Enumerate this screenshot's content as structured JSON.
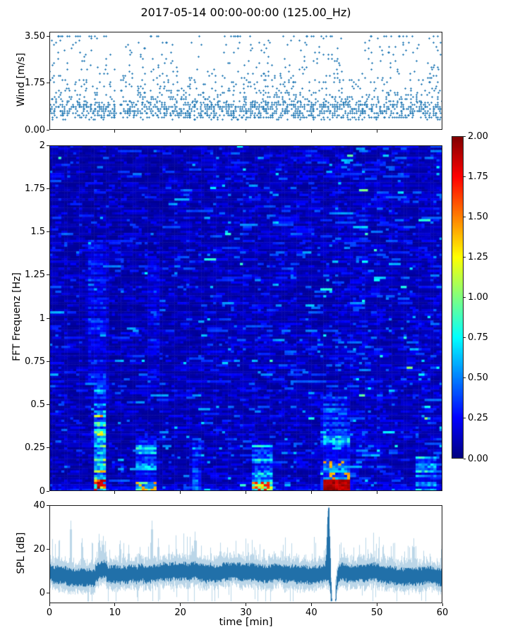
{
  "figure": {
    "title": "2017-05-14 00:00-00:00 (125.00_Hz)",
    "background": "#ffffff",
    "accent_color": "#1f77b4"
  },
  "chart_data": [
    {
      "type": "scatter",
      "name": "wind-speed",
      "ylabel": "Wind [m/s]",
      "yticks": [
        0,
        1.75,
        3.5
      ],
      "ytick_labels": [
        "0.00",
        "1.75",
        "3.50"
      ],
      "ylim": [
        0,
        3.66
      ],
      "xlim": [
        0,
        60
      ],
      "xticks_minor": [
        10,
        20,
        30,
        40,
        50
      ],
      "marker": "+",
      "color": "#1f77b4",
      "n_points": 1900,
      "y_min": 0.4,
      "y_max": 3.5,
      "quantize_y": 0.078,
      "quantize_x": 0.16,
      "gaps": [
        [
          10.05,
          10.7
        ]
      ],
      "calm_intervals": [
        [
          9.5,
          11.3
        ],
        [
          19.8,
          21.6
        ],
        [
          23.6,
          25.4
        ],
        [
          34.4,
          35.6
        ],
        [
          44.9,
          47.9
        ],
        [
          56.4,
          57.6
        ]
      ],
      "active_intervals": [
        [
          1.2,
          9.0
        ],
        [
          26.0,
          34.0
        ],
        [
          39.0,
          44.0
        ],
        [
          48.2,
          56.0
        ],
        [
          57.8,
          60.0
        ]
      ]
    },
    {
      "type": "heatmap",
      "name": "fft-spectrogram",
      "ylabel": "FFT Frequenz [Hz]",
      "yticks": [
        2,
        1.75,
        1.5,
        1.25,
        1,
        0.75,
        0.5,
        0.25,
        0
      ],
      "ytick_labels": [
        "2",
        "1.75",
        "1.5",
        "1.25",
        "1",
        "0.75",
        "0.5",
        "0.25",
        "0"
      ],
      "ylim": [
        0,
        2
      ],
      "xlim": [
        0,
        60
      ],
      "xticks_minor": [
        10,
        20,
        30,
        40,
        50
      ],
      "colormap": "jet",
      "clim": [
        0,
        2
      ],
      "background_level": 0.14,
      "colorbar": {
        "ticks": [
          2.0,
          1.75,
          1.5,
          1.25,
          1.0,
          0.75,
          0.5,
          0.25,
          0.0
        ],
        "tick_labels": [
          "2.00",
          "1.75",
          "1.50",
          "1.25",
          "1.00",
          "0.75",
          "0.50",
          "0.25",
          "0.00"
        ]
      },
      "features": [
        {
          "t": [
            6.6,
            8.9
          ],
          "f": [
            0.0,
            0.07
          ],
          "v": 2.0,
          "solid": 0.6
        },
        {
          "t": [
            6.6,
            8.9
          ],
          "f": [
            0.07,
            0.46
          ],
          "v": 1.55,
          "solid": 0
        },
        {
          "t": [
            6.6,
            8.9
          ],
          "f": [
            0.46,
            0.62
          ],
          "v": 0.95,
          "solid": 0
        },
        {
          "t": [
            5.4,
            9.2
          ],
          "f": [
            0.62,
            1.45
          ],
          "v": 0.5,
          "solid": 0
        },
        {
          "t": [
            12.9,
            16.7
          ],
          "f": [
            0.0,
            0.06
          ],
          "v": 1.5,
          "solid": 0.25
        },
        {
          "t": [
            12.9,
            16.7
          ],
          "f": [
            0.06,
            0.32
          ],
          "v": 1.1,
          "solid": 0
        },
        {
          "t": [
            14.8,
            17.2
          ],
          "f": [
            0.6,
            1.35
          ],
          "v": 0.45,
          "solid": 0
        },
        {
          "t": [
            21.4,
            23.3
          ],
          "f": [
            0.0,
            0.3
          ],
          "v": 0.75,
          "solid": 0
        },
        {
          "t": [
            30.7,
            34.4
          ],
          "f": [
            0.0,
            0.05
          ],
          "v": 1.8,
          "solid": 0.3
        },
        {
          "t": [
            30.7,
            34.4
          ],
          "f": [
            0.05,
            0.28
          ],
          "v": 1.0,
          "solid": 0
        },
        {
          "t": [
            41.5,
            46.2
          ],
          "f": [
            0.0,
            0.065
          ],
          "v": 2.0,
          "solid": 1
        },
        {
          "t": [
            41.3,
            46.2
          ],
          "f": [
            0.065,
            0.17
          ],
          "v": 1.5,
          "solid": 0.2
        },
        {
          "t": [
            41.3,
            46.2
          ],
          "f": [
            0.17,
            0.32
          ],
          "v": 1.0,
          "solid": 0
        },
        {
          "t": [
            41.3,
            46.0
          ],
          "f": [
            0.32,
            0.55
          ],
          "v": 0.65,
          "solid": 0
        },
        {
          "t": [
            55.6,
            59.6
          ],
          "f": [
            0.0,
            0.2
          ],
          "v": 1.0,
          "solid": 0
        },
        {
          "t": [
            0.0,
            60.0
          ],
          "f": [
            0.0,
            0.028
          ],
          "v": 0.55,
          "solid": 0
        }
      ]
    },
    {
      "type": "line",
      "name": "spl",
      "ylabel": "SPL [dB]",
      "xlabel": "time [min]",
      "yticks": [
        0,
        20,
        40
      ],
      "ytick_labels": [
        "0",
        "20",
        "40"
      ],
      "ylim": [
        -4.5,
        40
      ],
      "xlim": [
        0,
        60
      ],
      "xticks": [
        0,
        10,
        20,
        30,
        40,
        50,
        60
      ],
      "xtick_labels": [
        "0",
        "10",
        "20",
        "30",
        "40",
        "50",
        "60"
      ],
      "color": "#1f77b4",
      "baseline_db": 10,
      "baseline_spread_db": 4,
      "main_peak": {
        "t": 42.57,
        "v": 38.5,
        "width": 0.26
      },
      "post_peak_dip": {
        "t": 43.35,
        "depth": 6,
        "width": 0.38
      },
      "spike_clusters": [
        {
          "t0": 7.0,
          "t1": 8.7,
          "level": 26,
          "raise": 2
        },
        {
          "t0": 13.4,
          "t1": 14.3,
          "level": 20,
          "raise": 1
        }
      ],
      "peaks": [
        {
          "t": 3.2,
          "v": 33
        },
        {
          "t": 5.0,
          "v": 25
        },
        {
          "t": 7.5,
          "v": 27
        },
        {
          "t": 8.2,
          "v": 26
        },
        {
          "t": 10.8,
          "v": 24
        },
        {
          "t": 12.1,
          "v": 22
        },
        {
          "t": 13.8,
          "v": 21
        },
        {
          "t": 15.6,
          "v": 33
        },
        {
          "t": 16.6,
          "v": 25
        },
        {
          "t": 18.2,
          "v": 22
        },
        {
          "t": 22.2,
          "v": 28
        },
        {
          "t": 26.1,
          "v": 23
        },
        {
          "t": 29.5,
          "v": 19
        },
        {
          "t": 32.7,
          "v": 20
        },
        {
          "t": 36.6,
          "v": 18
        },
        {
          "t": 40.1,
          "v": 18
        },
        {
          "t": 42.6,
          "v": 38.5
        },
        {
          "t": 48.6,
          "v": 20
        },
        {
          "t": 50.9,
          "v": 22
        },
        {
          "t": 54.2,
          "v": 19
        },
        {
          "t": 55.6,
          "v": 25
        },
        {
          "t": 58.1,
          "v": 18
        },
        {
          "t": 59.8,
          "v": 20
        }
      ]
    }
  ]
}
